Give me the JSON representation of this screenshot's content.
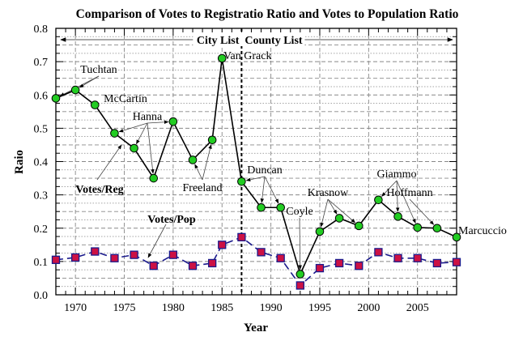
{
  "chart_data": {
    "type": "line",
    "title": "Comparison of Votes to Registratio Ratio and Votes to Population Ratio",
    "xlabel": "Year",
    "ylabel": "Raio",
    "xlim": [
      1968,
      2009
    ],
    "ylim": [
      0,
      0.8
    ],
    "xticks": [
      1970,
      1975,
      1980,
      1985,
      1990,
      1995,
      2000,
      2005
    ],
    "yticks": [
      0.0,
      0.1,
      0.2,
      0.3,
      0.4,
      0.5,
      0.6,
      0.7,
      0.8
    ],
    "ytick_labels": [
      "0.0",
      "0.1",
      "0.2",
      "0.3",
      "0.4",
      "0.5",
      "0.6",
      "0.7",
      "0.8"
    ],
    "grid": true,
    "x": [
      1968,
      1970,
      1972,
      1974,
      1976,
      1978,
      1980,
      1982,
      1984,
      1985,
      1987,
      1989,
      1991,
      1993,
      1995,
      1997,
      1999,
      2001,
      2003,
      2005,
      2007,
      2009
    ],
    "series": [
      {
        "name": "Votes/Reg",
        "color": "#000000",
        "marker_color": "#22cc22",
        "marker": "circle",
        "line": "solid",
        "values": [
          0.59,
          0.615,
          0.57,
          0.485,
          0.44,
          0.35,
          0.52,
          0.405,
          0.465,
          0.71,
          0.34,
          0.262,
          0.262,
          0.062,
          0.19,
          0.23,
          0.207,
          0.285,
          0.235,
          0.202,
          0.2,
          0.173
        ]
      },
      {
        "name": "Votes/Pop",
        "color": "#1a1a8c",
        "marker_color": "#cc1144",
        "marker": "square",
        "line": "dashed",
        "values": [
          0.105,
          0.112,
          0.13,
          0.11,
          0.12,
          0.087,
          0.12,
          0.087,
          0.095,
          0.15,
          0.173,
          0.128,
          0.11,
          0.028,
          0.08,
          0.095,
          0.087,
          0.128,
          0.11,
          0.11,
          0.095,
          0.098
        ]
      }
    ],
    "divider_year": 1987,
    "region_labels": {
      "left": "City List",
      "right": "County List"
    },
    "annotations": [
      {
        "text": "Tuchtan",
        "years": [
          1968,
          1970
        ]
      },
      {
        "text": "McCartin",
        "years": []
      },
      {
        "text": "Hanna",
        "years": [
          1974,
          1976,
          1978,
          1980
        ]
      },
      {
        "text": "Freeland",
        "years": [
          1982,
          1984
        ]
      },
      {
        "text": "Van Grack",
        "years": []
      },
      {
        "text": "Duncan",
        "years": [
          1987,
          1989,
          1991
        ]
      },
      {
        "text": "Coyle",
        "years": [
          1993
        ]
      },
      {
        "text": "Krasnow",
        "years": [
          1995,
          1997,
          1999
        ]
      },
      {
        "text": "Giammo",
        "years": [
          2001,
          2003,
          2005
        ]
      },
      {
        "text": "Hoffmann",
        "years": [
          2007
        ]
      },
      {
        "text": "Marcuccio",
        "years": []
      }
    ]
  }
}
